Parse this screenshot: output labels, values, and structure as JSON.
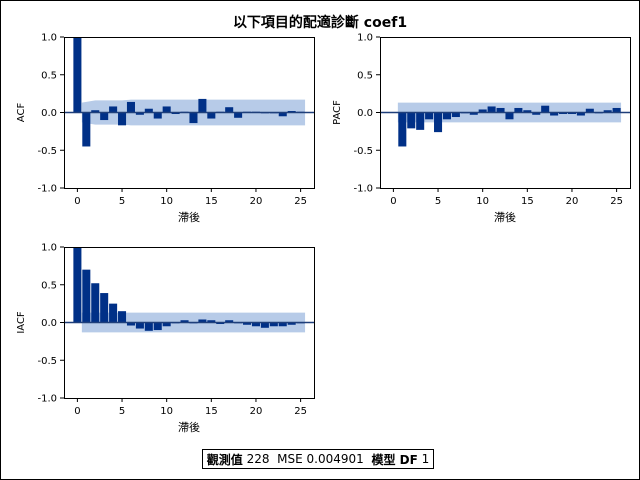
{
  "title": "以下項目的配適診斷 coef1",
  "colors": {
    "bar": "#003087",
    "band": "#b7cbe8",
    "zero_line": "#1f3f7a",
    "axis": "#000000"
  },
  "footer": {
    "obs_label": "觀測值",
    "obs_value": "228",
    "mse_label": "MSE",
    "mse_value": "0.004901",
    "df_label": "模型 DF",
    "df_value": "1"
  },
  "chart_data": [
    {
      "type": "bar",
      "ylabel": "ACF",
      "xlabel": "滯後",
      "ylim": [
        -1.0,
        1.0
      ],
      "xlim": [
        -1.5,
        26.5
      ],
      "yticks": [
        1.0,
        0.5,
        0.0,
        -0.5,
        -1.0
      ],
      "ytick_labels": [
        "1.0",
        "0.5",
        "0.0",
        "-0.5",
        "-1.0"
      ],
      "xticks": [
        0,
        5,
        10,
        15,
        20,
        25
      ],
      "x": [
        0,
        1,
        2,
        3,
        4,
        5,
        6,
        7,
        8,
        9,
        10,
        11,
        12,
        13,
        14,
        15,
        16,
        17,
        18,
        19,
        20,
        21,
        22,
        23,
        24,
        25
      ],
      "values": [
        1.0,
        -0.45,
        0.03,
        -0.1,
        0.08,
        -0.17,
        0.14,
        -0.03,
        0.05,
        -0.08,
        0.08,
        -0.02,
        0.01,
        -0.14,
        0.18,
        -0.08,
        0.01,
        0.07,
        -0.07,
        0.01,
        0.01,
        -0.01,
        -0.01,
        -0.05,
        0.02,
        0.01
      ],
      "band": {
        "lag": [
          1,
          2,
          3,
          4,
          5,
          6,
          7,
          8,
          9,
          10,
          11,
          12,
          13,
          14,
          15,
          16,
          17,
          18,
          19,
          20,
          21,
          22,
          23,
          24,
          25
        ],
        "upper": [
          0.13,
          0.16,
          0.16,
          0.16,
          0.16,
          0.17,
          0.17,
          0.17,
          0.17,
          0.17,
          0.17,
          0.17,
          0.17,
          0.17,
          0.17,
          0.17,
          0.17,
          0.17,
          0.17,
          0.17,
          0.17,
          0.17,
          0.17,
          0.17,
          0.17
        ]
      }
    },
    {
      "type": "bar",
      "ylabel": "PACF",
      "xlabel": "滯後",
      "ylim": [
        -1.0,
        1.0
      ],
      "xlim": [
        -1.5,
        26.5
      ],
      "yticks": [
        1.0,
        0.5,
        0.0,
        -0.5,
        -1.0
      ],
      "ytick_labels": [
        "1.0",
        "0.5",
        "0.0",
        "-0.5",
        "-1.0"
      ],
      "xticks": [
        0,
        5,
        10,
        15,
        20,
        25
      ],
      "x": [
        1,
        2,
        3,
        4,
        5,
        6,
        7,
        8,
        9,
        10,
        11,
        12,
        13,
        14,
        15,
        16,
        17,
        18,
        19,
        20,
        21,
        22,
        23,
        24,
        25
      ],
      "values": [
        -0.45,
        -0.21,
        -0.23,
        -0.09,
        -0.26,
        -0.09,
        -0.06,
        0.0,
        -0.03,
        0.04,
        0.08,
        0.06,
        -0.09,
        0.06,
        0.03,
        -0.03,
        0.09,
        -0.04,
        -0.02,
        -0.02,
        -0.04,
        0.05,
        -0.01,
        0.03,
        0.06
      ],
      "band": {
        "lag": [
          1,
          25
        ],
        "upper": [
          0.13,
          0.13
        ]
      }
    },
    {
      "type": "bar",
      "ylabel": "IACF",
      "xlabel": "滯後",
      "ylim": [
        -1.0,
        1.0
      ],
      "xlim": [
        -1.5,
        26.5
      ],
      "yticks": [
        1.0,
        0.5,
        0.0,
        -0.5,
        -1.0
      ],
      "ytick_labels": [
        "1.0",
        "0.5",
        "0.0",
        "-0.5",
        "-1.0"
      ],
      "xticks": [
        0,
        5,
        10,
        15,
        20,
        25
      ],
      "x": [
        0,
        1,
        2,
        3,
        4,
        5,
        6,
        7,
        8,
        9,
        10,
        11,
        12,
        13,
        14,
        15,
        16,
        17,
        18,
        19,
        20,
        21,
        22,
        23,
        24,
        25
      ],
      "values": [
        1.0,
        0.7,
        0.52,
        0.39,
        0.25,
        0.15,
        -0.04,
        -0.08,
        -0.11,
        -0.1,
        -0.05,
        0.0,
        0.03,
        -0.01,
        0.04,
        0.03,
        -0.02,
        0.03,
        0.0,
        -0.03,
        -0.05,
        -0.07,
        -0.05,
        -0.05,
        -0.03,
        0.0
      ],
      "band": {
        "lag": [
          1,
          25
        ],
        "upper": [
          0.13,
          0.13
        ]
      }
    }
  ]
}
